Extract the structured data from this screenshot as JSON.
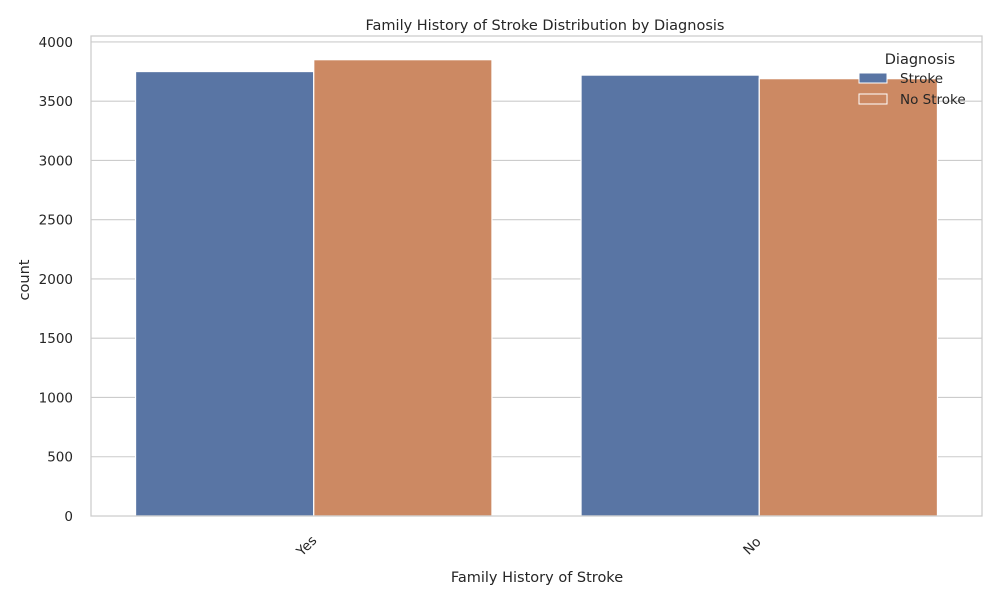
{
  "chart_data": {
    "type": "bar",
    "title": "Family History of Stroke Distribution by Diagnosis",
    "xlabel": "Family History of Stroke",
    "ylabel": "count",
    "categories": [
      "Yes",
      "No"
    ],
    "series": [
      {
        "name": "Stroke",
        "values": [
          3750,
          3720
        ],
        "color": "#5975a4"
      },
      {
        "name": "No Stroke",
        "values": [
          3850,
          3690
        ],
        "color": "#cc8963"
      }
    ],
    "ylim": [
      0,
      4050
    ],
    "yticks": [
      0,
      500,
      1000,
      1500,
      2000,
      2500,
      3000,
      3500,
      4000
    ],
    "grid": "horizontal",
    "legend": {
      "title": "Diagnosis",
      "position": "top-right"
    },
    "x_tick_rotation": "45 degrees"
  }
}
